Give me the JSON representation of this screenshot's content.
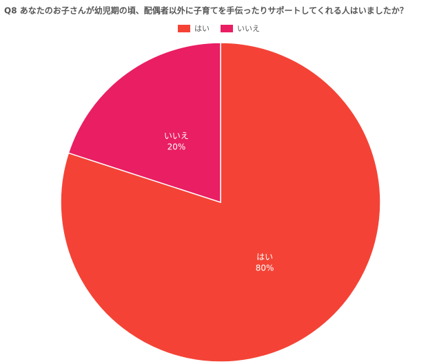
{
  "chart_data": {
    "type": "pie",
    "title": "Q8 あなたのお子さんが幼児期の頃、配偶者以外に子育てを手伝ったりサポートしてくれる人はいましたか？",
    "categories": [
      "はい",
      "いいえ"
    ],
    "values": [
      80,
      20
    ],
    "value_labels": [
      "80%",
      "20%"
    ],
    "colors": [
      "#f44336",
      "#e91e63"
    ],
    "legend": "top"
  }
}
